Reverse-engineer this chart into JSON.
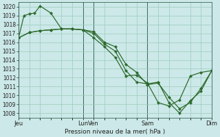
{
  "background_color": "#cce8e8",
  "grid_color": "#99ccbb",
  "line_color": "#2d6a2d",
  "xlabel_text": "Pression niveau de la mer( hPa )",
  "ylim": [
    1007.5,
    1020.5
  ],
  "yticks": [
    1008,
    1009,
    1010,
    1011,
    1012,
    1013,
    1014,
    1015,
    1016,
    1017,
    1018,
    1019,
    1020
  ],
  "xlim": [
    0,
    18
  ],
  "xtick_labels": [
    "Jeu",
    "",
    "Lun",
    "Ven",
    "",
    "Sam",
    "",
    "Dim"
  ],
  "xtick_positions": [
    0,
    3,
    6,
    7,
    9,
    12,
    15,
    18
  ],
  "day_vlines": [
    0,
    6,
    7,
    12,
    18
  ],
  "line1_x": [
    0,
    0.5,
    1.0,
    1.5,
    2.0,
    3.0,
    4.0,
    5.0,
    6.0,
    7.0,
    8.0,
    9.0,
    10.0,
    11.0,
    12.0,
    13.0,
    14.0,
    15.0,
    16.0,
    17.0,
    18.0
  ],
  "line1_y": [
    1016.5,
    1019.0,
    1019.2,
    1019.3,
    1020.1,
    1019.3,
    1017.5,
    1017.5,
    1017.4,
    1016.5,
    1015.5,
    1014.3,
    1012.2,
    1012.3,
    1011.4,
    1009.2,
    1008.8,
    1009.5,
    1012.2,
    1012.6,
    1012.8
  ],
  "line2_x": [
    0,
    1.0,
    2.0,
    3.0,
    4.0,
    5.0,
    6.0,
    7.0,
    8.0,
    9.0,
    10.0,
    11.0,
    12.0,
    13.0,
    14.0,
    15.0,
    16.0,
    17.0,
    18.0
  ],
  "line2_y": [
    1016.5,
    1017.1,
    1017.3,
    1017.4,
    1017.5,
    1017.5,
    1017.4,
    1017.2,
    1016.0,
    1015.5,
    1013.5,
    1012.6,
    1011.2,
    1011.4,
    1009.8,
    1008.5,
    1009.2,
    1010.8,
    1012.8
  ],
  "line3_x": [
    0,
    1.0,
    2.0,
    3.0,
    4.0,
    5.0,
    6.0,
    7.0,
    8.0,
    9.0,
    10.0,
    11.0,
    12.0,
    13.0,
    14.0,
    15.0,
    16.0,
    17.0,
    18.0
  ],
  "line3_y": [
    1016.5,
    1017.1,
    1017.3,
    1017.4,
    1017.5,
    1017.5,
    1017.4,
    1017.0,
    1015.8,
    1015.0,
    1012.8,
    1011.5,
    1011.3,
    1011.5,
    1009.2,
    1008.0,
    1009.4,
    1010.5,
    1012.8
  ],
  "markersize": 2.2,
  "linewidth": 0.9,
  "ytick_fontsize": 5.5,
  "xtick_fontsize": 6.0,
  "xlabel_fontsize": 6.5
}
